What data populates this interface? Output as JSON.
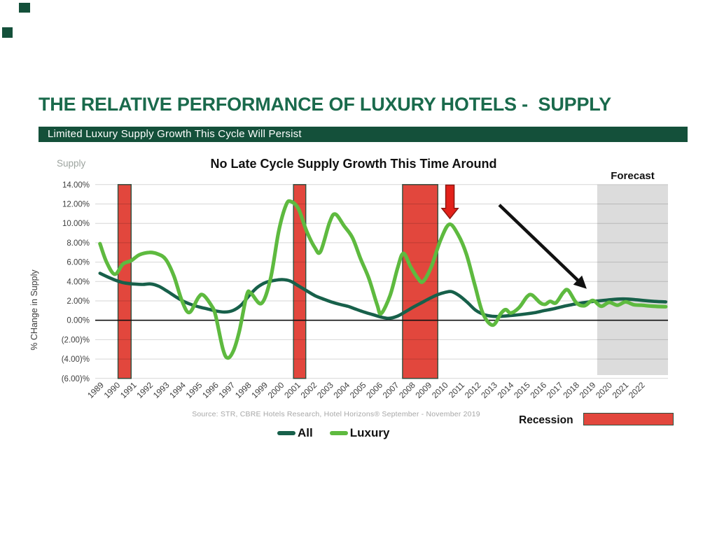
{
  "slide": {
    "title": "THE RELATIVE PERFORMANCE OF LUXURY HOTELS -  SUPPLY",
    "subtitle_banner": "Limited Luxury Supply Growth This Cycle Will Persist",
    "colors": {
      "title_green": "#1A6A4C",
      "banner_green": "#14503A",
      "deco_green": "#14503A"
    }
  },
  "chart": {
    "supply_label": "Supply",
    "title": "No Late Cycle Supply Growth This Time Around",
    "forecast_label": "Forecast",
    "y_axis_title": "% CHange in Supply",
    "source": "Source: STR, CBRE Hotels Research, Hotel Horizons® September - November 2019",
    "recession_label": "Recession"
  },
  "chart_data": {
    "type": "line",
    "title": "No Late Cycle Supply Growth This Time Around",
    "xlabel": "",
    "ylabel": "% CHange in Supply",
    "ylim": [
      -6,
      14
    ],
    "grid": true,
    "legend_position": "bottom",
    "y_ticks": [
      {
        "value": 14,
        "label": "14.00%"
      },
      {
        "value": 12,
        "label": "12.00%"
      },
      {
        "value": 10,
        "label": "10.00%"
      },
      {
        "value": 8,
        "label": "8.00%"
      },
      {
        "value": 6,
        "label": "6.00%"
      },
      {
        "value": 4,
        "label": "4.00%"
      },
      {
        "value": 2,
        "label": "2.00%"
      },
      {
        "value": 0,
        "label": "0.00%"
      },
      {
        "value": -2,
        "label": "(2.00)%"
      },
      {
        "value": -4,
        "label": "(4.00)%"
      },
      {
        "value": -6,
        "label": "(6.00)%"
      }
    ],
    "x_ticks": [
      1989,
      1990,
      1991,
      1992,
      1993,
      1994,
      1995,
      1996,
      1997,
      1998,
      1999,
      2000,
      2001,
      2002,
      2003,
      2004,
      2005,
      2006,
      2007,
      2008,
      2009,
      2010,
      2011,
      2012,
      2013,
      2014,
      2015,
      2016,
      2017,
      2018,
      2019,
      2020,
      2021,
      2022
    ],
    "colors": {
      "recession_fill": "#E2473D",
      "recession_border": "#2F5140",
      "forecast_fill": "#DCDCDC",
      "red_arrow_fill": "#E3211A",
      "red_arrow_border": "#8A1812",
      "black_arrow": "#111111"
    },
    "recession_bands": [
      [
        1990.1,
        1990.9
      ],
      [
        2000.8,
        2001.55
      ],
      [
        2007.45,
        2009.6
      ]
    ],
    "forecast_band": [
      2019.32,
      2023.65
    ],
    "annotations": {
      "red_arrow": {
        "year": 2010.34,
        "top_value": 13.95,
        "head_value": 11.55,
        "tip_value": 10.5
      },
      "black_arrow": {
        "from_year": 2013.35,
        "from_value": 11.9,
        "to_year": 2018.68,
        "to_value": 3.25
      }
    },
    "series": [
      {
        "name": "All",
        "color": "#17604A",
        "width": 4.6,
        "points": [
          [
            1989.0,
            4.85
          ],
          [
            1989.5,
            4.45
          ],
          [
            1990.0,
            4.1
          ],
          [
            1990.5,
            3.85
          ],
          [
            1991.0,
            3.75
          ],
          [
            1991.6,
            3.7
          ],
          [
            1992.1,
            3.75
          ],
          [
            1992.6,
            3.5
          ],
          [
            1993.1,
            3.0
          ],
          [
            1993.6,
            2.45
          ],
          [
            1994.1,
            1.95
          ],
          [
            1994.6,
            1.6
          ],
          [
            1995.1,
            1.35
          ],
          [
            1995.6,
            1.15
          ],
          [
            1996.1,
            0.95
          ],
          [
            1996.6,
            0.85
          ],
          [
            1997.1,
            1.0
          ],
          [
            1997.6,
            1.55
          ],
          [
            1998.1,
            2.55
          ],
          [
            1998.6,
            3.4
          ],
          [
            1999.1,
            3.9
          ],
          [
            1999.6,
            4.1
          ],
          [
            2000.1,
            4.2
          ],
          [
            2000.6,
            4.05
          ],
          [
            2001.1,
            3.55
          ],
          [
            2001.6,
            3.05
          ],
          [
            2002.1,
            2.55
          ],
          [
            2002.6,
            2.2
          ],
          [
            2003.1,
            1.9
          ],
          [
            2003.6,
            1.65
          ],
          [
            2004.1,
            1.45
          ],
          [
            2004.6,
            1.15
          ],
          [
            2005.1,
            0.85
          ],
          [
            2005.6,
            0.6
          ],
          [
            2006.1,
            0.35
          ],
          [
            2006.6,
            0.2
          ],
          [
            2007.1,
            0.4
          ],
          [
            2007.6,
            0.85
          ],
          [
            2008.1,
            1.35
          ],
          [
            2008.6,
            1.8
          ],
          [
            2009.1,
            2.25
          ],
          [
            2009.6,
            2.65
          ],
          [
            2010.1,
            2.9
          ],
          [
            2010.45,
            2.95
          ],
          [
            2010.9,
            2.55
          ],
          [
            2011.4,
            1.85
          ],
          [
            2011.9,
            1.05
          ],
          [
            2012.4,
            0.6
          ],
          [
            2012.9,
            0.42
          ],
          [
            2013.4,
            0.4
          ],
          [
            2014.1,
            0.5
          ],
          [
            2014.8,
            0.62
          ],
          [
            2015.5,
            0.78
          ],
          [
            2016.1,
            1.0
          ],
          [
            2016.7,
            1.2
          ],
          [
            2017.3,
            1.45
          ],
          [
            2017.9,
            1.65
          ],
          [
            2018.5,
            1.82
          ],
          [
            2019.1,
            1.95
          ],
          [
            2019.7,
            2.05
          ],
          [
            2020.3,
            2.15
          ],
          [
            2020.9,
            2.2
          ],
          [
            2021.5,
            2.15
          ],
          [
            2022.1,
            2.05
          ],
          [
            2022.8,
            1.95
          ],
          [
            2023.5,
            1.9
          ]
        ]
      },
      {
        "name": "Luxury",
        "color": "#5EBA3F",
        "width": 5.2,
        "points": [
          [
            1989.0,
            7.9
          ],
          [
            1989.4,
            6.0
          ],
          [
            1989.9,
            4.75
          ],
          [
            1990.4,
            5.8
          ],
          [
            1990.9,
            6.15
          ],
          [
            1991.4,
            6.75
          ],
          [
            1992.0,
            7.0
          ],
          [
            1992.5,
            6.85
          ],
          [
            1993.0,
            6.3
          ],
          [
            1993.5,
            4.6
          ],
          [
            1994.0,
            2.0
          ],
          [
            1994.45,
            0.8
          ],
          [
            1995.0,
            2.35
          ],
          [
            1995.3,
            2.6
          ],
          [
            1995.8,
            1.5
          ],
          [
            1996.05,
            0.5
          ],
          [
            1996.5,
            -3.0
          ],
          [
            1996.8,
            -3.9
          ],
          [
            1997.15,
            -3.1
          ],
          [
            1997.5,
            -1.1
          ],
          [
            1997.95,
            2.6
          ],
          [
            1998.2,
            2.8
          ],
          [
            1998.85,
            1.75
          ],
          [
            1999.4,
            4.3
          ],
          [
            1999.9,
            9.2
          ],
          [
            2000.35,
            11.9
          ],
          [
            2000.65,
            12.25
          ],
          [
            2001.1,
            11.5
          ],
          [
            2001.6,
            9.2
          ],
          [
            2002.1,
            7.5
          ],
          [
            2002.45,
            7.1
          ],
          [
            2003.0,
            10.1
          ],
          [
            2003.35,
            10.95
          ],
          [
            2003.9,
            9.7
          ],
          [
            2004.4,
            8.5
          ],
          [
            2004.9,
            6.3
          ],
          [
            2005.4,
            4.3
          ],
          [
            2005.9,
            1.6
          ],
          [
            2006.15,
            0.7
          ],
          [
            2006.7,
            2.6
          ],
          [
            2007.15,
            5.4
          ],
          [
            2007.5,
            6.9
          ],
          [
            2007.95,
            5.5
          ],
          [
            2008.4,
            4.3
          ],
          [
            2008.7,
            4.0
          ],
          [
            2009.2,
            5.5
          ],
          [
            2009.75,
            8.2
          ],
          [
            2010.3,
            9.9
          ],
          [
            2010.85,
            8.8
          ],
          [
            2011.35,
            6.8
          ],
          [
            2011.85,
            3.7
          ],
          [
            2012.35,
            0.7
          ],
          [
            2012.95,
            -0.5
          ],
          [
            2013.45,
            0.7
          ],
          [
            2013.75,
            1.1
          ],
          [
            2014.05,
            0.75
          ],
          [
            2014.55,
            1.3
          ],
          [
            2015.05,
            2.45
          ],
          [
            2015.35,
            2.6
          ],
          [
            2015.85,
            1.8
          ],
          [
            2016.15,
            1.65
          ],
          [
            2016.45,
            1.95
          ],
          [
            2016.8,
            1.8
          ],
          [
            2017.25,
            2.85
          ],
          [
            2017.55,
            3.1
          ],
          [
            2018.05,
            1.8
          ],
          [
            2018.55,
            1.5
          ],
          [
            2019.05,
            2.05
          ],
          [
            2019.55,
            1.45
          ],
          [
            2020.05,
            1.85
          ],
          [
            2020.55,
            1.55
          ],
          [
            2021.05,
            1.9
          ],
          [
            2021.55,
            1.6
          ],
          [
            2022.05,
            1.55
          ],
          [
            2022.75,
            1.45
          ],
          [
            2023.5,
            1.4
          ]
        ]
      }
    ]
  }
}
